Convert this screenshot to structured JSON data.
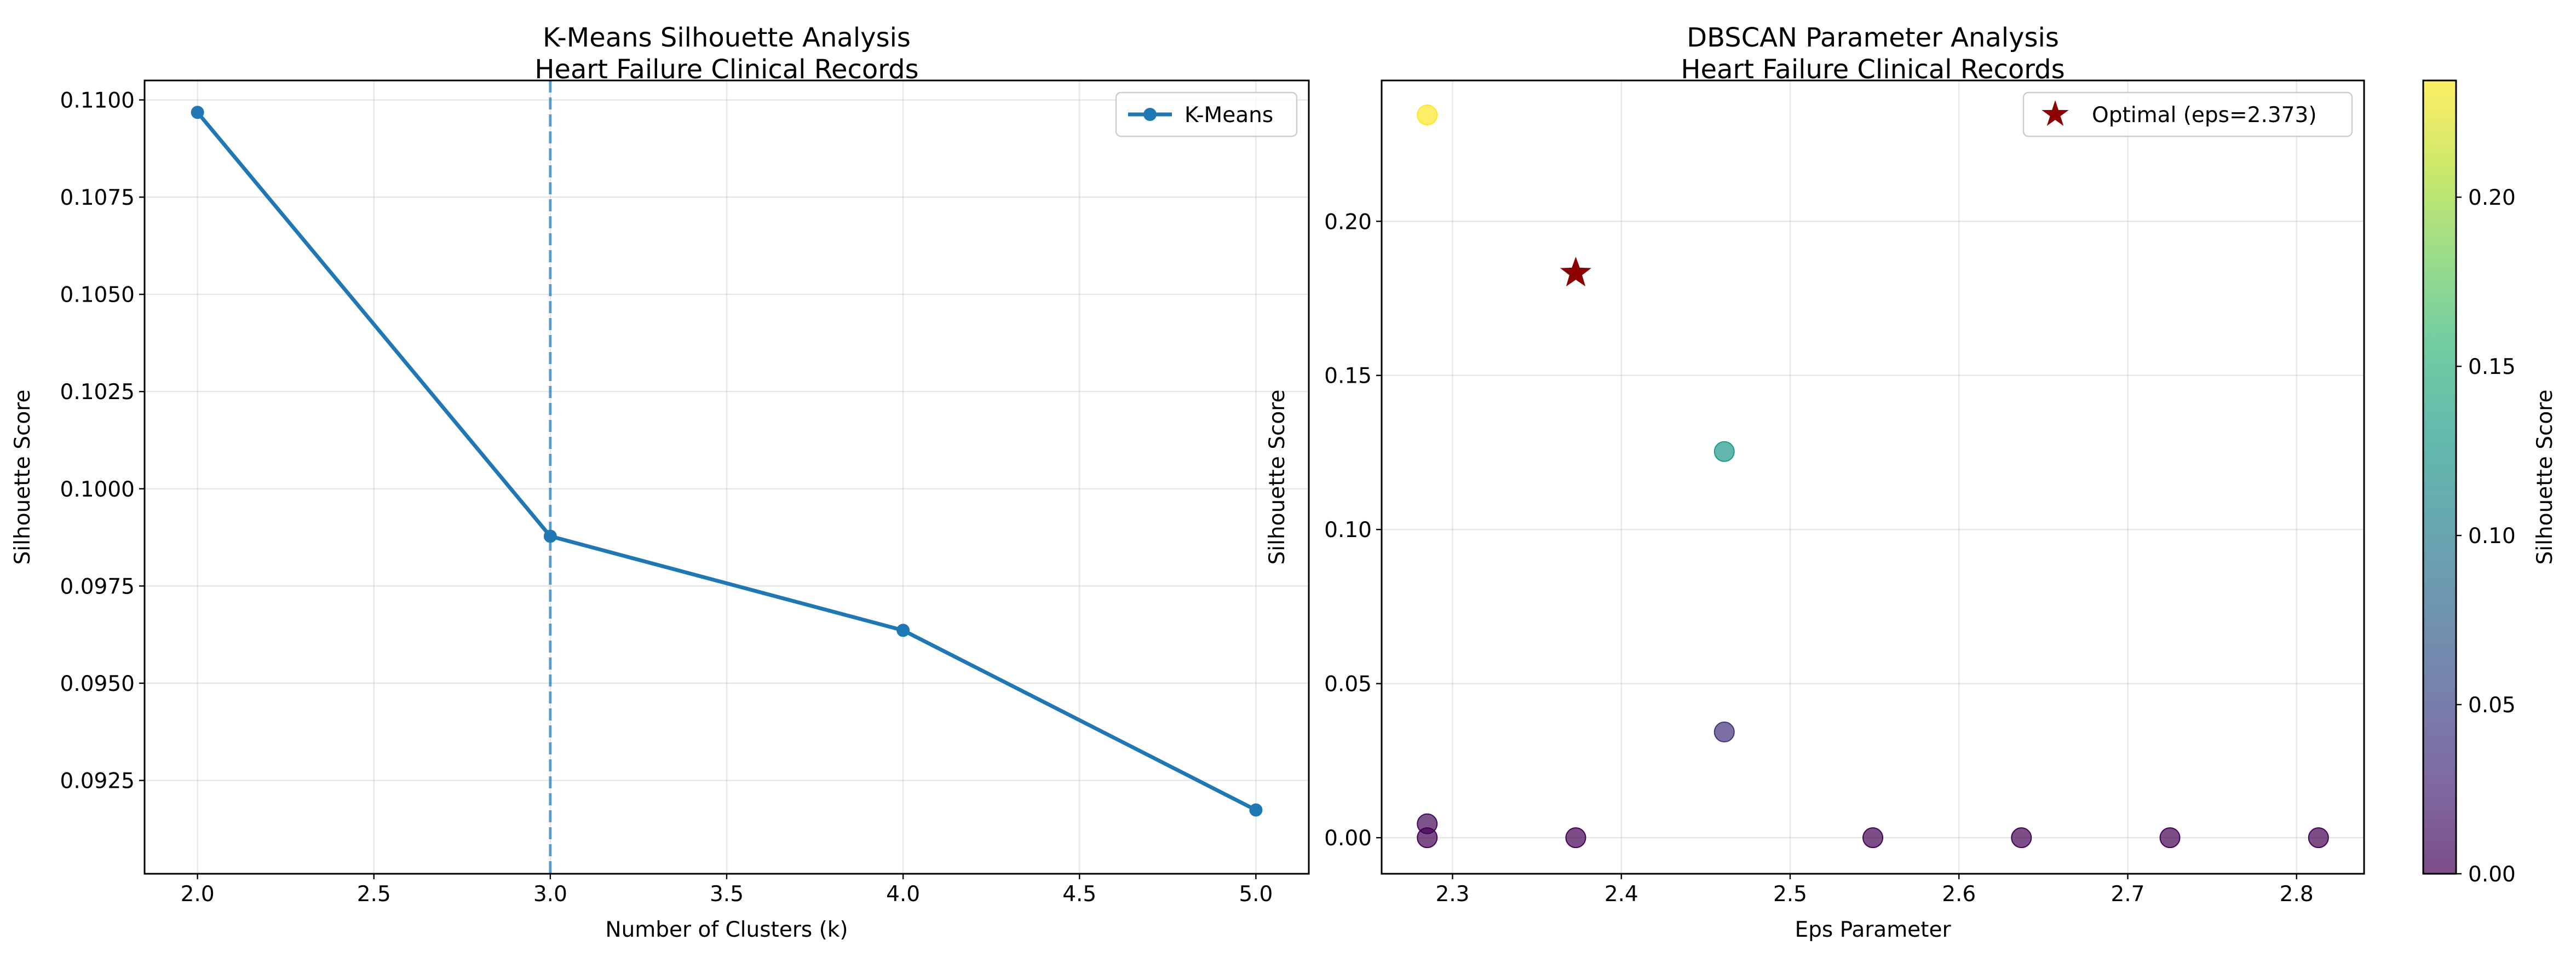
{
  "chart_data": [
    {
      "type": "line",
      "title": "K-Means Silhouette Analysis\nHeart Failure Clinical Records",
      "xlabel": "Number of Clusters (k)",
      "ylabel": "Silhouette Score",
      "xlim": [
        1.85,
        5.15
      ],
      "ylim": [
        0.0901,
        0.1105
      ],
      "xticks": [
        "2.0",
        "2.5",
        "3.0",
        "3.5",
        "4.0",
        "4.5",
        "5.0"
      ],
      "yticks": [
        "0.0925",
        "0.0950",
        "0.0975",
        "0.1000",
        "0.1025",
        "0.1050",
        "0.1075",
        "0.1100"
      ],
      "grid": true,
      "legend": "top-right",
      "series": [
        {
          "name": "K-Means",
          "color": "#1f77b4",
          "x": [
            2,
            3,
            4,
            5
          ],
          "y": [
            0.10968,
            0.09878,
            0.09636,
            0.09174
          ]
        }
      ],
      "reference_lines": [
        {
          "orientation": "vertical",
          "x": 3,
          "style": "dashed",
          "color": "#1f77b4"
        }
      ]
    },
    {
      "type": "scatter",
      "title": "DBSCAN Parameter Analysis\nHeart Failure Clinical Records",
      "xlabel": "Eps Parameter",
      "ylabel": "Silhouette Score",
      "xlim": [
        2.258,
        2.84
      ],
      "ylim": [
        -0.0117,
        0.2457
      ],
      "xticks": [
        "2.3",
        "2.4",
        "2.5",
        "2.6",
        "2.7",
        "2.8"
      ],
      "yticks": [
        "0.00",
        "0.05",
        "0.10",
        "0.15",
        "0.20"
      ],
      "grid": true,
      "legend": "top-right",
      "colormap": "viridis",
      "colorbar": {
        "label": "Silhouette Score",
        "range": [
          0,
          0.2345
        ],
        "ticks": [
          "0.00",
          "0.05",
          "0.10",
          "0.15",
          "0.20"
        ]
      },
      "points": [
        {
          "x": 2.285,
          "y": 0.2345
        },
        {
          "x": 2.285,
          "y": 0.0045
        },
        {
          "x": 2.285,
          "y": 0.0
        },
        {
          "x": 2.373,
          "y": 0.0
        },
        {
          "x": 2.461,
          "y": 0.1253
        },
        {
          "x": 2.461,
          "y": 0.0343
        },
        {
          "x": 2.549,
          "y": 0.0
        },
        {
          "x": 2.637,
          "y": 0.0
        },
        {
          "x": 2.725,
          "y": 0.0
        },
        {
          "x": 2.813,
          "y": 0.0
        }
      ],
      "highlight": {
        "name": "Optimal (eps=2.373)",
        "x": 2.373,
        "y": 0.1832,
        "marker": "star",
        "color": "#8b0000"
      }
    }
  ]
}
